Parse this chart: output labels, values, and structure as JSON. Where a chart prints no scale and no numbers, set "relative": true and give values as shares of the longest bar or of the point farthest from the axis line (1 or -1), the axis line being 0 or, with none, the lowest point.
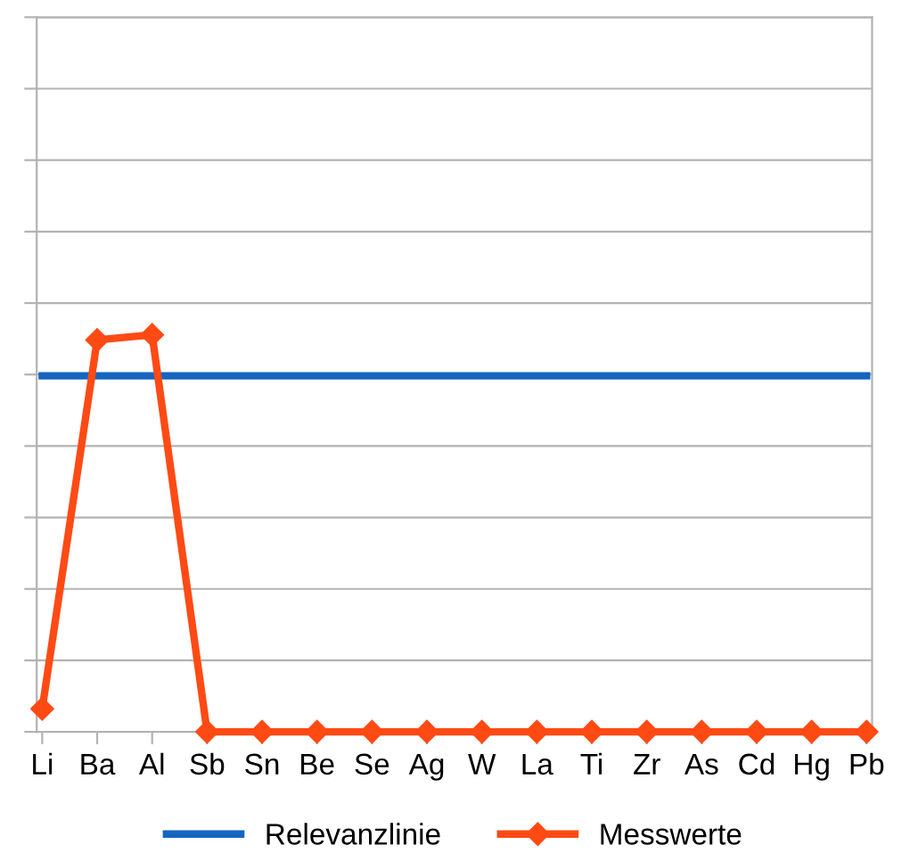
{
  "chart_data": {
    "type": "line",
    "relative": true,
    "categories": [
      "Li",
      "Ba",
      "Al",
      "Sb",
      "Sn",
      "Be",
      "Se",
      "Ag",
      "W",
      "La",
      "Ti",
      "Zr",
      "As",
      "Cd",
      "Hg",
      "Pb"
    ],
    "series": [
      {
        "name": "Relevanzlinie",
        "color": "#1565c0",
        "marker": "none",
        "values": [
          0.897,
          0.897,
          0.897,
          0.897,
          0.897,
          0.897,
          0.897,
          0.897,
          0.897,
          0.897,
          0.897,
          0.897,
          0.897,
          0.897,
          0.897,
          0.897
        ]
      },
      {
        "name": "Messwerte",
        "color": "#ff4a14",
        "marker": "diamond",
        "values": [
          0.058,
          0.987,
          1,
          0,
          0,
          0,
          0,
          0,
          0,
          0,
          0,
          0,
          0,
          0,
          0,
          0
        ]
      }
    ],
    "grid": "y",
    "legend": "bottom",
    "line_style": "solid"
  }
}
